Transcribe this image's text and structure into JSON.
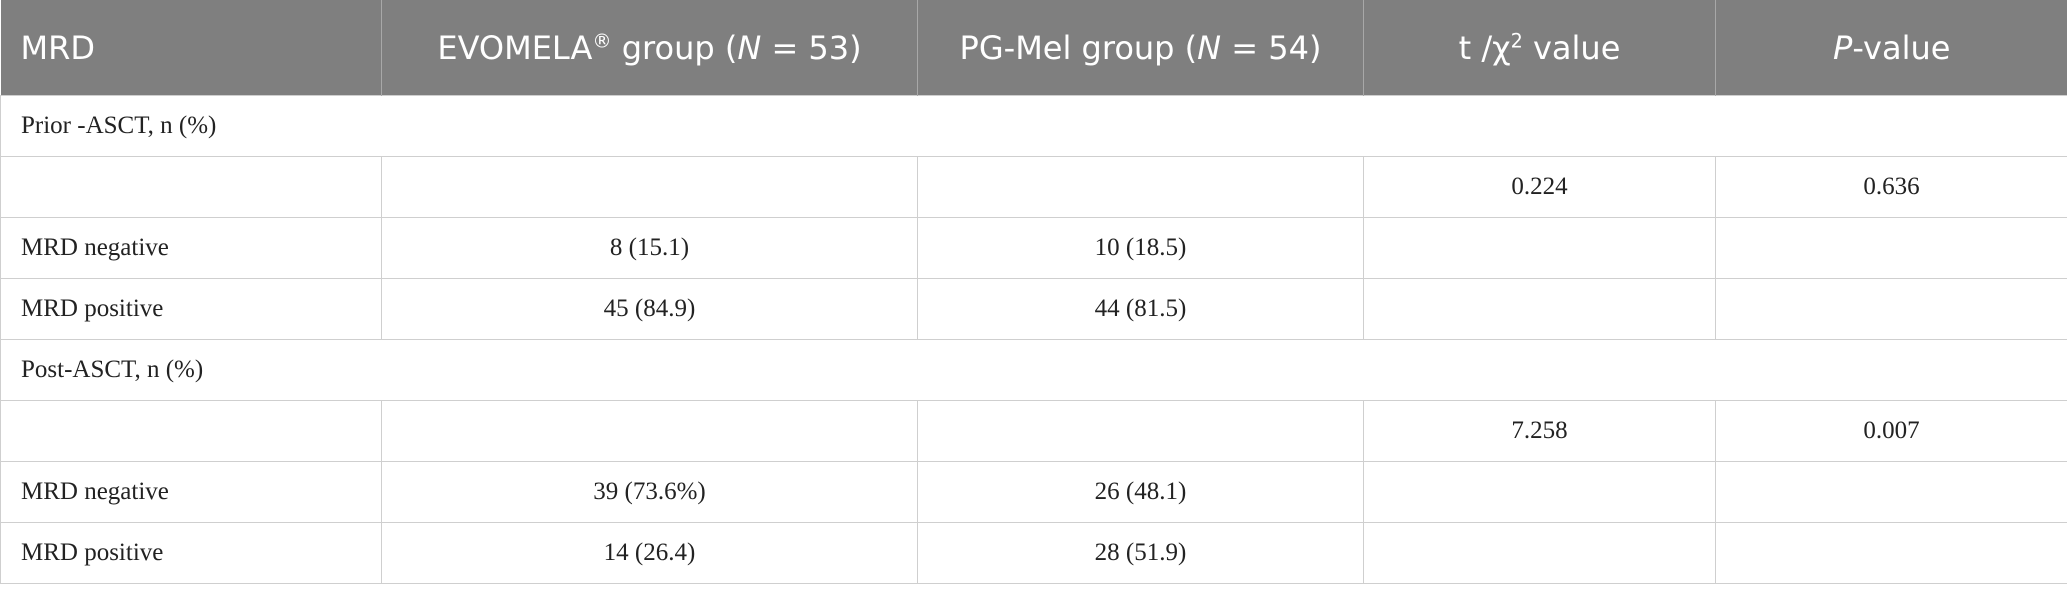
{
  "header": [
    [
      {
        "text": "MRD"
      }
    ],
    [
      {
        "text": "EVOMELA"
      },
      {
        "text": "®",
        "style": "sup"
      },
      {
        "text": " group ("
      },
      {
        "text": "N",
        "style": "italic"
      },
      {
        "text": " = 53)"
      }
    ],
    [
      {
        "text": "PG-Mel group ("
      },
      {
        "text": "N",
        "style": "italic"
      },
      {
        "text": " = 54)"
      }
    ],
    [
      {
        "text": "t /χ"
      },
      {
        "text": "2",
        "style": "sup"
      },
      {
        "text": " value"
      }
    ],
    [
      {
        "text": "P",
        "style": "italic"
      },
      {
        "text": "-value"
      }
    ]
  ],
  "rows": [
    [
      "Prior -ASCT, n (%)"
    ],
    [
      null,
      null,
      null,
      "0.224",
      "0.636"
    ],
    [
      "MRD negative",
      "8 (15.1)",
      "10 (18.5)",
      null,
      null
    ],
    [
      "MRD positive",
      "45 (84.9)",
      "44 (81.5)",
      null,
      null
    ],
    [
      "Post-ASCT, n (%)"
    ],
    [
      null,
      null,
      null,
      "7.258",
      "0.007"
    ],
    [
      "MRD negative",
      "39 (73.6%)",
      "26 (48.1)",
      null,
      null
    ],
    [
      "MRD positive",
      "14 (26.4)",
      "28 (51.9)",
      null,
      null
    ]
  ]
}
